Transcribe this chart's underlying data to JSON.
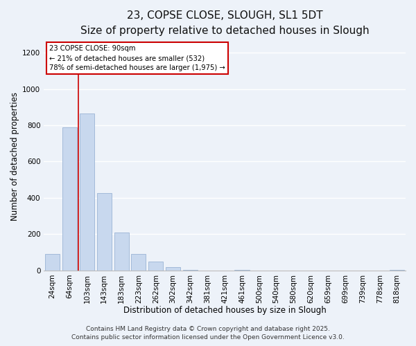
{
  "title": "23, COPSE CLOSE, SLOUGH, SL1 5DT",
  "subtitle": "Size of property relative to detached houses in Slough",
  "xlabel": "Distribution of detached houses by size in Slough",
  "ylabel": "Number of detached properties",
  "bar_labels": [
    "24sqm",
    "64sqm",
    "103sqm",
    "143sqm",
    "183sqm",
    "223sqm",
    "262sqm",
    "302sqm",
    "342sqm",
    "381sqm",
    "421sqm",
    "461sqm",
    "500sqm",
    "540sqm",
    "580sqm",
    "620sqm",
    "659sqm",
    "699sqm",
    "739sqm",
    "778sqm",
    "818sqm"
  ],
  "bar_values": [
    90,
    790,
    865,
    425,
    210,
    90,
    50,
    18,
    4,
    0,
    0,
    3,
    0,
    0,
    0,
    0,
    0,
    0,
    0,
    0,
    3
  ],
  "bar_color": "#c8d8ee",
  "bar_edge_color": "#9ab4d4",
  "ylim": [
    0,
    1260
  ],
  "yticks": [
    0,
    200,
    400,
    600,
    800,
    1000,
    1200
  ],
  "property_line_color": "#cc0000",
  "property_line_x": 1.5,
  "annotation_title": "23 COPSE CLOSE: 90sqm",
  "annotation_line1": "← 21% of detached houses are smaller (532)",
  "annotation_line2": "78% of semi-detached houses are larger (1,975) →",
  "annotation_box_color": "#ffffff",
  "annotation_box_edge": "#cc0000",
  "footer1": "Contains HM Land Registry data © Crown copyright and database right 2025.",
  "footer2": "Contains public sector information licensed under the Open Government Licence v3.0.",
  "background_color": "#edf2f9",
  "grid_color": "#ffffff",
  "title_fontsize": 11,
  "subtitle_fontsize": 9.5,
  "axis_label_fontsize": 8.5,
  "tick_fontsize": 7.5,
  "footer_fontsize": 6.5
}
